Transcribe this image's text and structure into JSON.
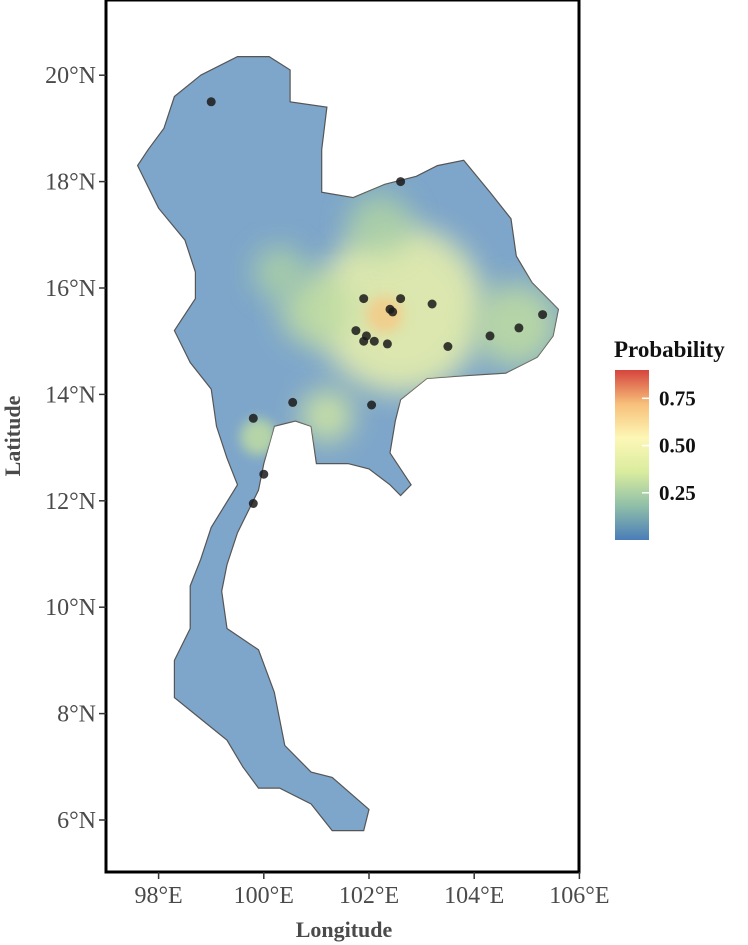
{
  "map": {
    "xlabel": "Longitude",
    "ylabel": "Latitude",
    "xlim": [
      97,
      106
    ],
    "ylim": [
      5,
      21
    ],
    "x_ticks": [
      {
        "value": 98,
        "label": "98°E"
      },
      {
        "value": 100,
        "label": "100°E"
      },
      {
        "value": 102,
        "label": "102°E"
      },
      {
        "value": 104,
        "label": "104°E"
      },
      {
        "value": 106,
        "label": "106°E"
      }
    ],
    "y_ticks": [
      {
        "value": 6,
        "label": "6°N"
      },
      {
        "value": 8,
        "label": "8°N"
      },
      {
        "value": 10,
        "label": "10°N"
      },
      {
        "value": 12,
        "label": "12°N"
      },
      {
        "value": 14,
        "label": "14°N"
      },
      {
        "value": 16,
        "label": "16°N"
      },
      {
        "value": 18,
        "label": "18°N"
      },
      {
        "value": 20,
        "label": "20°N"
      }
    ],
    "land_color": "#7ea6ca",
    "outline_color": "#555555",
    "point_color": "#1a1a1a",
    "points": [
      {
        "lon": 99.0,
        "lat": 19.5
      },
      {
        "lon": 102.6,
        "lat": 18.0
      },
      {
        "lon": 101.9,
        "lat": 15.8
      },
      {
        "lon": 102.6,
        "lat": 15.8
      },
      {
        "lon": 103.2,
        "lat": 15.7
      },
      {
        "lon": 102.4,
        "lat": 15.6
      },
      {
        "lon": 102.45,
        "lat": 15.55
      },
      {
        "lon": 101.75,
        "lat": 15.2
      },
      {
        "lon": 101.95,
        "lat": 15.1
      },
      {
        "lon": 101.9,
        "lat": 15.0
      },
      {
        "lon": 102.1,
        "lat": 15.0
      },
      {
        "lon": 102.35,
        "lat": 14.95
      },
      {
        "lon": 103.5,
        "lat": 14.9
      },
      {
        "lon": 104.3,
        "lat": 15.1
      },
      {
        "lon": 104.85,
        "lat": 15.25
      },
      {
        "lon": 105.3,
        "lat": 15.5
      },
      {
        "lon": 100.55,
        "lat": 13.85
      },
      {
        "lon": 102.05,
        "lat": 13.8
      },
      {
        "lon": 99.8,
        "lat": 13.55
      },
      {
        "lon": 100.0,
        "lat": 12.5
      },
      {
        "lon": 99.8,
        "lat": 11.95
      }
    ],
    "hotspots": [
      {
        "lon": 102.6,
        "lat": 15.6,
        "r": 1.6,
        "level": 0.45
      },
      {
        "lon": 101.0,
        "lat": 15.6,
        "r": 0.7,
        "level": 0.3
      },
      {
        "lon": 100.3,
        "lat": 16.3,
        "r": 0.5,
        "level": 0.25
      },
      {
        "lon": 101.2,
        "lat": 13.6,
        "r": 0.5,
        "level": 0.35
      },
      {
        "lon": 99.9,
        "lat": 13.2,
        "r": 0.35,
        "level": 0.3
      },
      {
        "lon": 104.8,
        "lat": 15.3,
        "r": 0.8,
        "level": 0.3
      },
      {
        "lon": 102.2,
        "lat": 17.2,
        "r": 0.6,
        "level": 0.25
      },
      {
        "lon": 102.3,
        "lat": 15.5,
        "r": 0.35,
        "level": 0.7
      }
    ]
  },
  "legend": {
    "title": "Probability",
    "range": [
      0,
      0.9
    ],
    "ticks": [
      {
        "value": 0.25,
        "label": "0.25"
      },
      {
        "value": 0.5,
        "label": "0.50"
      },
      {
        "value": 0.75,
        "label": "0.75"
      }
    ],
    "colors": [
      "#4a7db8",
      "#8fbfa8",
      "#d9ec9e",
      "#fdf7b6",
      "#f7c07a",
      "#d6443e"
    ]
  }
}
